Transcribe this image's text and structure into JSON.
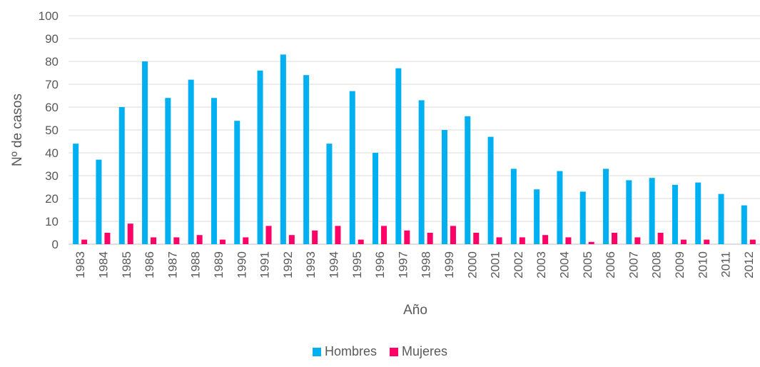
{
  "chart_data": {
    "type": "bar",
    "title": "",
    "xlabel": "Año",
    "ylabel": "Nº de casos",
    "ylim": [
      0,
      100
    ],
    "yticks": [
      0,
      10,
      20,
      30,
      40,
      50,
      60,
      70,
      80,
      90,
      100
    ],
    "grid": true,
    "legend_position": "bottom",
    "categories": [
      "1983",
      "1984",
      "1985",
      "1986",
      "1987",
      "1988",
      "1989",
      "1990",
      "1991",
      "1992",
      "1993",
      "1994",
      "1995",
      "1996",
      "1997",
      "1998",
      "1999",
      "2000",
      "2001",
      "2002",
      "2003",
      "2004",
      "2005",
      "2006",
      "2007",
      "2008",
      "2009",
      "2010",
      "2011",
      "2012"
    ],
    "series": [
      {
        "name": "Hombres",
        "color": "#00B0F0",
        "values": [
          44,
          37,
          60,
          80,
          64,
          72,
          64,
          54,
          76,
          83,
          74,
          44,
          67,
          40,
          77,
          63,
          50,
          56,
          47,
          33,
          24,
          32,
          23,
          33,
          28,
          29,
          26,
          27,
          22,
          17
        ]
      },
      {
        "name": "Mujeres",
        "color": "#FF0066",
        "values": [
          2,
          5,
          9,
          3,
          3,
          4,
          2,
          3,
          8,
          4,
          6,
          8,
          2,
          8,
          6,
          5,
          8,
          5,
          3,
          3,
          4,
          3,
          1,
          5,
          3,
          5,
          2,
          2,
          0,
          2
        ]
      }
    ]
  }
}
